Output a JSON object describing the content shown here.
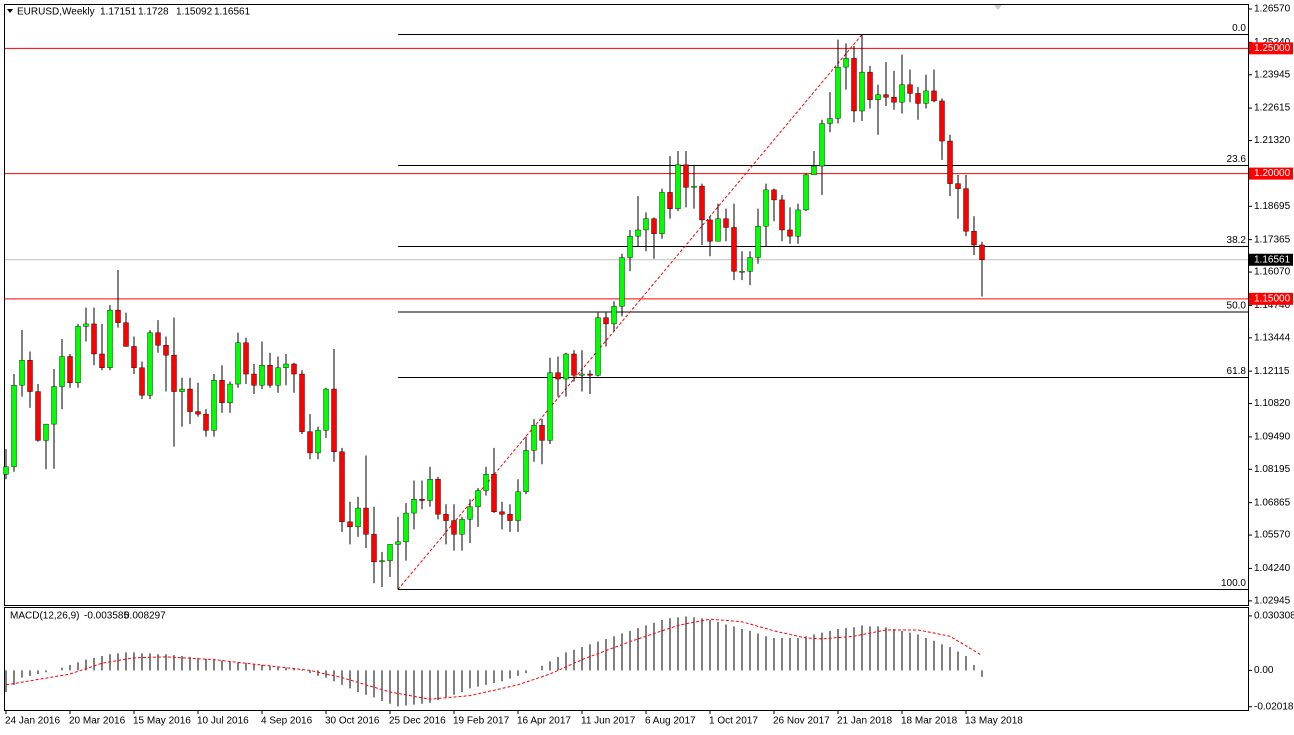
{
  "chart_data": {
    "type": "candlestick",
    "title": "EURUSD,Weekly",
    "categories": [
      "24 Jan 2016",
      null,
      null,
      null,
      null,
      null,
      null,
      null,
      "20 Mar 2016",
      null,
      null,
      null,
      null,
      null,
      null,
      null,
      "15 May 2016",
      null,
      null,
      null,
      null,
      null,
      null,
      null,
      "10 Jul 2016",
      null,
      null,
      null,
      null,
      null,
      null,
      null,
      "4 Sep 2016",
      null,
      null,
      null,
      null,
      null,
      null,
      null,
      "30 Oct 2016",
      null,
      null,
      null,
      null,
      null,
      null,
      null,
      "25 Dec 2016",
      null,
      null,
      null,
      null,
      null,
      null,
      null,
      "19 Feb 2017",
      null,
      null,
      null,
      null,
      null,
      null,
      null,
      "16 Apr 2017",
      null,
      null,
      null,
      null,
      null,
      null,
      null,
      "11 Jun 2017",
      null,
      null,
      null,
      null,
      null,
      null,
      null,
      "6 Aug 2017",
      null,
      null,
      null,
      null,
      null,
      null,
      null,
      "1 Oct 2017",
      null,
      null,
      null,
      null,
      null,
      null,
      null,
      "26 Nov 2017",
      null,
      null,
      null,
      null,
      null,
      null,
      null,
      "21 Jan 2018",
      null,
      null,
      null,
      null,
      null,
      null,
      null,
      "18 Mar 2018",
      null,
      null,
      null,
      null,
      null,
      null,
      null,
      "13 May 2018",
      null,
      null
    ],
    "open": [
      1.08,
      1.083,
      1.1155,
      1.1255,
      1.113,
      1.0935,
      1.1,
      1.115,
      1.127,
      1.1165,
      1.139,
      1.14,
      1.128,
      1.1225,
      1.1455,
      1.1405,
      1.131,
      1.1225,
      1.1115,
      1.1365,
      1.1315,
      1.1275,
      1.113,
      1.114,
      1.105,
      1.104,
      1.0975,
      1.1175,
      1.1085,
      1.116,
      1.1325,
      1.12,
      1.1155,
      1.1235,
      1.1155,
      1.1225,
      1.124,
      1.12,
      1.097,
      1.0885,
      1.0975,
      1.114,
      1.089,
      1.061,
      1.059,
      1.0665,
      1.056,
      1.045,
      1.0455,
      1.052,
      1.053,
      1.0645,
      1.07,
      1.0695,
      1.078,
      1.064,
      1.0615,
      1.056,
      1.062,
      1.067,
      1.0735,
      1.08,
      1.065,
      1.064,
      1.0615,
      1.073,
      1.0895,
      1.0995,
      1.0935,
      1.1205,
      1.118,
      1.128,
      1.1195,
      1.12,
      1.1195,
      1.1425,
      1.14,
      1.147,
      1.1665,
      1.175,
      1.1775,
      1.182,
      1.176,
      1.1925,
      1.186,
      1.2035,
      1.1945,
      1.195,
      1.1815,
      1.173,
      1.182,
      1.1785,
      1.161,
      1.161,
      1.1665,
      1.179,
      1.1935,
      1.1895,
      1.1775,
      1.175,
      1.1855,
      1.1995,
      1.203,
      1.22,
      1.222,
      1.2425,
      1.246,
      1.225,
      1.2405,
      1.2295,
      1.2315,
      1.2305,
      1.2285,
      1.2355,
      1.232,
      1.228,
      1.233,
      1.229,
      1.213,
      1.196,
      1.194,
      1.177,
      1.17151
    ],
    "high": [
      1.09,
      1.12,
      1.1376,
      1.129,
      1.116,
      1.1,
      1.122,
      1.134,
      1.128,
      1.14,
      1.1465,
      1.1465,
      1.14,
      1.1475,
      1.1615,
      1.1445,
      1.135,
      1.125,
      1.1375,
      1.1415,
      1.135,
      1.1425,
      1.1185,
      1.1185,
      1.1165,
      1.106,
      1.12,
      1.1235,
      1.117,
      1.1365,
      1.1345,
      1.124,
      1.133,
      1.1285,
      1.127,
      1.128,
      1.1245,
      1.1215,
      1.104,
      1.099,
      1.1145,
      1.13,
      1.0905,
      1.069,
      1.071,
      1.0875,
      1.067,
      1.049,
      1.05,
      1.063,
      1.0685,
      1.0775,
      1.0775,
      1.083,
      1.079,
      1.068,
      1.068,
      1.063,
      1.07,
      1.0745,
      1.083,
      1.0905,
      1.069,
      1.068,
      1.078,
      1.095,
      1.102,
      1.102,
      1.1265,
      1.127,
      1.1285,
      1.1295,
      1.1295,
      1.1215,
      1.1445,
      1.1445,
      1.149,
      1.168,
      1.1775,
      1.191,
      1.1845,
      1.1825,
      1.194,
      1.207,
      1.209,
      1.209,
      1.2035,
      1.196,
      1.183,
      1.188,
      1.186,
      1.188,
      1.169,
      1.169,
      1.186,
      1.196,
      1.194,
      1.1915,
      1.1865,
      1.188,
      1.2,
      1.209,
      1.2215,
      1.2325,
      1.2535,
      1.252,
      1.251,
      1.2555,
      1.243,
      1.2355,
      1.2445,
      1.241,
      1.2475,
      1.2415,
      1.2345,
      1.2395,
      1.2415,
      1.23,
      1.2155,
      1.1995,
      1.1995,
      1.183,
      1.1728
    ],
    "low": [
      1.078,
      1.081,
      1.111,
      1.1065,
      1.093,
      1.082,
      1.0822,
      1.106,
      1.1145,
      1.1145,
      1.133,
      1.1235,
      1.1215,
      1.1215,
      1.1385,
      1.131,
      1.12,
      1.11,
      1.11,
      1.1285,
      1.113,
      1.091,
      1.099,
      1.1,
      1.103,
      1.095,
      1.095,
      1.1045,
      1.1045,
      1.1145,
      1.116,
      1.112,
      1.114,
      1.1145,
      1.1125,
      1.1155,
      1.1125,
      1.096,
      1.086,
      1.086,
      1.0945,
      1.085,
      1.057,
      1.052,
      1.055,
      1.0505,
      1.0365,
      1.035,
      1.039,
      1.034,
      1.0455,
      1.058,
      1.066,
      1.067,
      1.062,
      1.052,
      1.0495,
      1.0495,
      1.0525,
      1.059,
      1.0715,
      1.0645,
      1.058,
      1.057,
      1.057,
      1.072,
      1.085,
      1.084,
      1.092,
      1.111,
      1.111,
      1.117,
      1.113,
      1.112,
      1.119,
      1.131,
      1.137,
      1.143,
      1.161,
      1.171,
      1.169,
      1.166,
      1.174,
      1.182,
      1.185,
      1.1865,
      1.186,
      1.1715,
      1.167,
      1.173,
      1.173,
      1.1575,
      1.1575,
      1.1555,
      1.164,
      1.171,
      1.181,
      1.173,
      1.172,
      1.172,
      1.185,
      1.1995,
      1.1915,
      1.2165,
      1.22,
      1.2335,
      1.2205,
      1.221,
      1.226,
      1.2155,
      1.227,
      1.2255,
      1.224,
      1.2285,
      1.2215,
      1.226,
      1.2285,
      1.2055,
      1.191,
      1.182,
      1.175,
      1.1675,
      1.15092
    ],
    "close": [
      1.083,
      1.1155,
      1.1255,
      1.113,
      1.0935,
      1.1,
      1.115,
      1.127,
      1.1165,
      1.139,
      1.14,
      1.128,
      1.1225,
      1.1455,
      1.1405,
      1.131,
      1.1225,
      1.1115,
      1.1365,
      1.1315,
      1.1275,
      1.113,
      1.114,
      1.105,
      1.104,
      1.0975,
      1.1175,
      1.1085,
      1.116,
      1.1325,
      1.12,
      1.1155,
      1.1235,
      1.1155,
      1.1225,
      1.124,
      1.12,
      1.097,
      1.0885,
      1.0975,
      1.114,
      1.089,
      1.061,
      1.059,
      1.0665,
      1.056,
      1.045,
      1.0455,
      1.052,
      1.053,
      1.0645,
      1.07,
      1.0695,
      1.078,
      1.064,
      1.0615,
      1.056,
      1.062,
      1.067,
      1.0735,
      1.08,
      1.065,
      1.064,
      1.0615,
      1.073,
      1.0895,
      1.0995,
      1.0935,
      1.1205,
      1.118,
      1.128,
      1.1195,
      1.12,
      1.1195,
      1.1425,
      1.14,
      1.147,
      1.1665,
      1.175,
      1.1775,
      1.182,
      1.176,
      1.1925,
      1.186,
      1.2035,
      1.1945,
      1.195,
      1.1815,
      1.173,
      1.182,
      1.1785,
      1.161,
      1.161,
      1.1665,
      1.179,
      1.1935,
      1.1895,
      1.1775,
      1.175,
      1.1855,
      1.1995,
      1.203,
      1.22,
      1.222,
      1.2425,
      1.246,
      1.225,
      1.2405,
      1.2295,
      1.2315,
      1.2305,
      1.2285,
      1.2355,
      1.232,
      1.228,
      1.233,
      1.229,
      1.213,
      1.196,
      1.194,
      1.177,
      1.1715,
      1.16561
    ],
    "up_color": "#00ff00",
    "down_color": "#ff0000",
    "ylim": [
      1.0278,
      1.2673
    ],
    "yticks": [
      {
        "value": 1.2657,
        "label": "1.26570"
      },
      {
        "value": 1.2524,
        "label": "1.25240"
      },
      1.23945,
      {
        "value": 1.22615,
        "label": "1.22615"
      },
      {
        "value": 1.2132,
        "label": "1.21320"
      },
      1.18695,
      1.17365,
      {
        "value": 1.1607,
        "label": "1.16070"
      },
      {
        "value": 1.1474,
        "label": "1.14740"
      },
      1.13444,
      1.12115,
      {
        "value": 1.1082,
        "label": "1.10820"
      },
      {
        "value": 1.0949,
        "label": "1.09490"
      },
      1.08195,
      1.06865,
      {
        "value": 1.0557,
        "label": "1.05570"
      },
      {
        "value": 1.0424,
        "label": "1.04240"
      },
      1.02945
    ],
    "levels": [
      {
        "value": 1.25,
        "label": "1.25000"
      },
      {
        "value": 1.2,
        "label": "1.20000"
      },
      {
        "value": 1.15,
        "label": "1.15000"
      }
    ],
    "level_color": "#ff0000",
    "fibonacci": {
      "high": 1.2555,
      "low": 1.034,
      "levels": [
        {
          "value": 0,
          "label": "0.0"
        },
        {
          "value": 23.6,
          "label": "23.6"
        },
        {
          "value": 38.2,
          "label": "38.2"
        },
        {
          "value": 50,
          "label": "50.0"
        },
        {
          "value": 61.8,
          "label": "61.8"
        },
        {
          "value": 100,
          "label": "100.0"
        }
      ]
    },
    "macd": {
      "title": "MACD(12,26,9)",
      "ylim": [
        -0.022,
        0.0347
      ],
      "yticks": [
        0.030308,
        {
          "value": 0,
          "label": "0.00"
        },
        -0.020187
      ],
      "signal_color": "#ff0000",
      "histogram": [
        -0.012,
        -0.008,
        -0.004,
        -0.003,
        -0.002,
        -0.001,
        0.0,
        0.0015,
        0.003,
        0.0045,
        0.006,
        0.007,
        0.008,
        0.009,
        0.0095,
        0.01,
        0.01,
        0.0095,
        0.0095,
        0.009,
        0.009,
        0.0085,
        0.008,
        0.0075,
        0.007,
        0.0065,
        0.006,
        0.0055,
        0.005,
        0.0045,
        0.004,
        0.0035,
        0.003,
        0.0025,
        0.002,
        0.0015,
        0.001,
        -0.0003,
        -0.0015,
        -0.003,
        -0.004,
        -0.006,
        -0.008,
        -0.01,
        -0.012,
        -0.0135,
        -0.015,
        -0.017,
        -0.0185,
        -0.02,
        -0.0195,
        -0.019,
        -0.0185,
        -0.018,
        -0.0165,
        -0.015,
        -0.0135,
        -0.012,
        -0.01,
        -0.009,
        -0.008,
        -0.007,
        -0.006,
        -0.0045,
        -0.003,
        -0.0015,
        0.0,
        0.0025,
        0.005,
        0.0075,
        0.01,
        0.0115,
        0.013,
        0.0145,
        0.016,
        0.0175,
        0.019,
        0.0205,
        0.022,
        0.0235,
        0.025,
        0.0265,
        0.028,
        0.029,
        0.0295,
        0.03,
        0.0295,
        0.029,
        0.028,
        0.027,
        0.0255,
        0.0245,
        0.023,
        0.022,
        0.0205,
        0.019,
        0.018,
        0.018,
        0.018,
        0.018,
        0.019,
        0.02,
        0.021,
        0.022,
        0.023,
        0.0235,
        0.024,
        0.025,
        0.0245,
        0.0245,
        0.024,
        0.023,
        0.022,
        0.021,
        0.02,
        0.018,
        0.0165,
        0.0145,
        0.013,
        0.0105,
        0.008,
        0.003,
        -0.003585
      ],
      "signal": [
        -0.008,
        -0.0073,
        -0.0065,
        -0.0058,
        -0.005,
        -0.0043,
        -0.0035,
        -0.0028,
        -0.002,
        -0.0005,
        0.001,
        0.0025,
        0.004,
        0.0048,
        0.0055,
        0.0063,
        0.007,
        0.0071,
        0.0073,
        0.0074,
        0.0075,
        0.0073,
        0.007,
        0.0068,
        0.0065,
        0.0063,
        0.006,
        0.0055,
        0.005,
        0.0045,
        0.004,
        0.0035,
        0.003,
        0.0025,
        0.002,
        0.0015,
        0.001,
        0.0005,
        0.0,
        -0.001,
        -0.002,
        -0.003,
        -0.004,
        -0.0053,
        -0.0067,
        -0.008,
        -0.0093,
        -0.0107,
        -0.012,
        -0.0128,
        -0.0136,
        -0.0144,
        -0.0152,
        -0.016,
        -0.0156,
        -0.0152,
        -0.0148,
        -0.0144,
        -0.014,
        -0.013,
        -0.012,
        -0.011,
        -0.01,
        -0.009,
        -0.008,
        -0.0065,
        -0.005,
        -0.0035,
        -0.002,
        0.0,
        0.002,
        0.004,
        0.006,
        0.0077,
        0.0093,
        0.011,
        0.0127,
        0.0143,
        0.016,
        0.0175,
        0.019,
        0.0205,
        0.022,
        0.0235,
        0.025,
        0.0259,
        0.0268,
        0.0276,
        0.0285,
        0.0281,
        0.0278,
        0.0274,
        0.027,
        0.0258,
        0.0245,
        0.0233,
        0.022,
        0.021,
        0.02,
        0.019,
        0.018,
        0.0178,
        0.0175,
        0.0179,
        0.0183,
        0.0186,
        0.019,
        0.0199,
        0.0208,
        0.0216,
        0.0225,
        0.0225,
        0.0225,
        0.0225,
        0.0225,
        0.0216,
        0.0208,
        0.0199,
        0.019,
        0.0163,
        0.0137,
        0.011,
        0.008297
      ]
    }
  }
}
